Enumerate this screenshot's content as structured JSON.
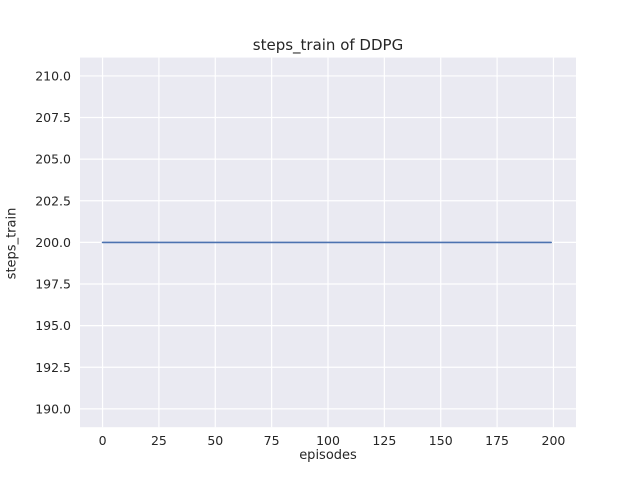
{
  "chart_data": {
    "type": "line",
    "title": "steps_train of DDPG",
    "xlabel": "episodes",
    "ylabel": "steps_train",
    "x_tick_values": [
      0,
      25,
      50,
      75,
      100,
      125,
      150,
      175,
      200
    ],
    "x_tick_labels": [
      "0",
      "25",
      "50",
      "75",
      "100",
      "125",
      "150",
      "175",
      "200"
    ],
    "y_tick_values": [
      190.0,
      192.5,
      195.0,
      197.5,
      200.0,
      202.5,
      205.0,
      207.5,
      210.0
    ],
    "y_tick_labels": [
      "190.0",
      "192.5",
      "195.0",
      "197.5",
      "200.0",
      "202.5",
      "205.0",
      "207.5",
      "210.0"
    ],
    "xlim": [
      -10,
      210
    ],
    "ylim": [
      188.9,
      211.1
    ],
    "grid": true,
    "legend": "none",
    "plot_bg": "#eaeaf2",
    "grid_color": "#ffffff",
    "series": [
      {
        "name": "steps_train",
        "color": "#4c72b0",
        "x": [
          0,
          199
        ],
        "values": [
          200,
          200
        ]
      }
    ]
  }
}
